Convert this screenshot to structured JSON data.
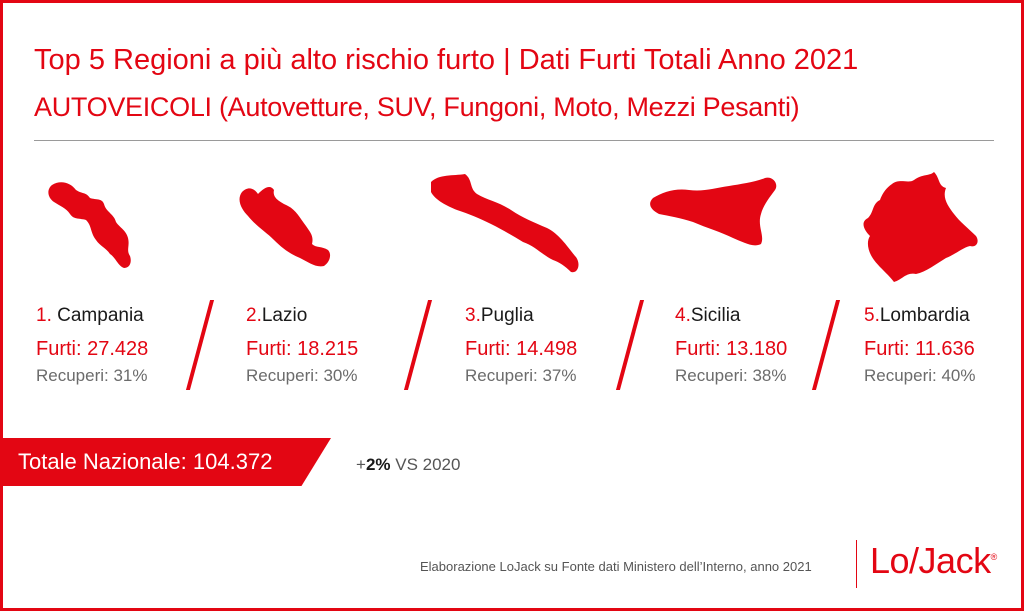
{
  "title": "Top 5 Regioni a più alto rischio furto | Dati Furti Totali Anno 2021",
  "subtitle": "AUTOVEICOLI (Autovetture, SUV, Fungoni, Moto, Mezzi Pesanti)",
  "regions": [
    {
      "rank": "1.",
      "name": " Campania",
      "furti": "Furti: 27.428",
      "recuperi": "Recuperi: 31%"
    },
    {
      "rank": "2.",
      "name": "Lazio",
      "furti": "Furti: 18.215",
      "recuperi": "Recuperi: 30%"
    },
    {
      "rank": "3.",
      "name": "Puglia",
      "furti": "Furti: 14.498",
      "recuperi": "Recuperi: 37%"
    },
    {
      "rank": "4.",
      "name": "Sicilia",
      "furti": "Furti: 13.180",
      "recuperi": "Recuperi: 38%"
    },
    {
      "rank": "5.",
      "name": "Lombardia",
      "furti": "Furti: 11.636",
      "recuperi": "Recuperi: 40%"
    }
  ],
  "total": {
    "label": "Totale Nazionale",
    "separator": ": ",
    "value": "104.372"
  },
  "delta": {
    "sign": "+",
    "value": "2%",
    "text": " VS 2020"
  },
  "source": "Elaborazione LoJack su Fonte dati Ministero dell’Interno, anno 2021",
  "logo": {
    "text": "Lo/Jack",
    "mark": "®"
  },
  "colors": {
    "accent": "#e30613",
    "text": "#1a1a1a",
    "muted": "#6b6b6b"
  }
}
